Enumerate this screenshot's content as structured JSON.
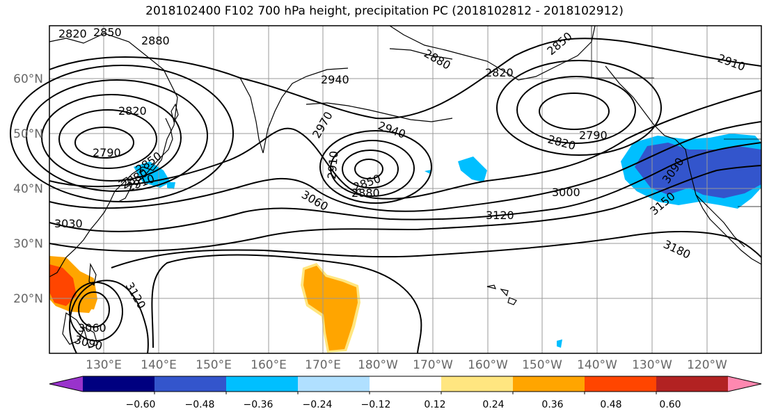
{
  "title": "2018102400 F102 700 hPa height, precipitation PC (2018102812 - 2018102912)",
  "lat_labels": [
    "60°N",
    "50°N",
    "40°N",
    "30°N",
    "20°N"
  ],
  "lon_labels": [
    "130°E",
    "140°E",
    "150°E",
    "160°E",
    "170°E",
    "180°W",
    "170°W",
    "160°W",
    "150°W",
    "140°W",
    "130°W",
    "120°W"
  ],
  "contour_labels": [
    "2820",
    "2850",
    "2880",
    "2880",
    "2940",
    "2820",
    "2850",
    "2910",
    "2820",
    "2790",
    "2970",
    "2940",
    "2910",
    "2850",
    "2880",
    "2850",
    "2880",
    "2910",
    "3000",
    "2790",
    "2820",
    "3060",
    "3120",
    "3090",
    "3030",
    "3150",
    "3180",
    "3120",
    "3060",
    "3090"
  ],
  "colorbar": {
    "ticks": [
      "−0.60",
      "−0.48",
      "−0.36",
      "−0.24",
      "−0.12",
      "0.12",
      "0.24",
      "0.36",
      "0.48",
      "0.60"
    ],
    "colors": [
      "#9933cc",
      "#000080",
      "#3355cc",
      "#00bfff",
      "#b0e0ff",
      "#ffffff",
      "#ffe680",
      "#ffa500",
      "#ff4500",
      "#b22222",
      "#ff88b0"
    ]
  }
}
